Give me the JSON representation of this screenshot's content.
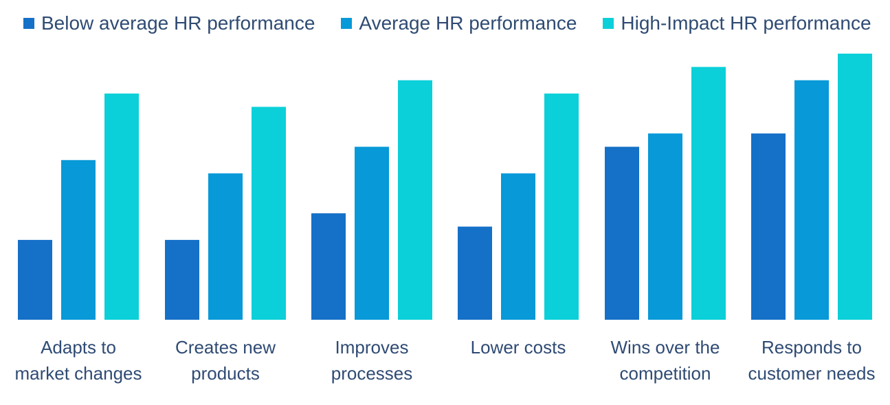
{
  "chart_data": {
    "type": "bar",
    "categories": [
      [
        "Adapts to",
        "market changes"
      ],
      [
        "Creates new",
        "products"
      ],
      [
        "Improves",
        "processes"
      ],
      [
        "Lower costs"
      ],
      [
        "Wins over the",
        "competition"
      ],
      [
        "Responds to",
        "customer needs"
      ]
    ],
    "series": [
      {
        "name": "Below average HR performance",
        "color": "#1570c7",
        "values": [
          30,
          30,
          40,
          35,
          65,
          70
        ]
      },
      {
        "name": "Average  HR performance",
        "color": "#0799d8",
        "values": [
          60,
          55,
          65,
          55,
          70,
          90
        ]
      },
      {
        "name": "High-Impact  HR performance",
        "color": "#0bd0d9",
        "values": [
          85,
          80,
          90,
          85,
          95,
          100
        ]
      }
    ],
    "ylim": [
      0,
      100
    ],
    "grid": false,
    "legend_position": "top"
  }
}
